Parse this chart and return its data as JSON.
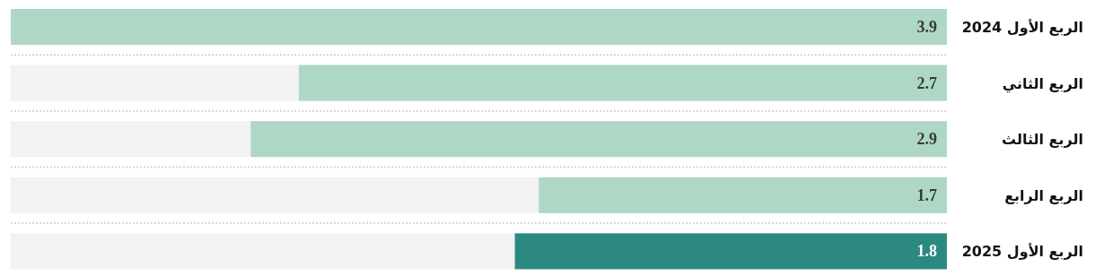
{
  "chart_data": {
    "type": "bar",
    "orientation": "horizontal",
    "categories": [
      "الربع الأول 2024",
      "الربع الثاني",
      "الربع الثالث",
      "الربع الرابع",
      "الربع الأول 2025"
    ],
    "values": [
      3.9,
      2.7,
      2.9,
      1.7,
      1.8
    ],
    "colors": [
      "#aed7c6",
      "#aed7c6",
      "#aed7c6",
      "#aed7c6",
      "#2c8980"
    ],
    "xlim": [
      3.9,
      0
    ],
    "tick_labels": "y",
    "data_labels": true
  }
}
